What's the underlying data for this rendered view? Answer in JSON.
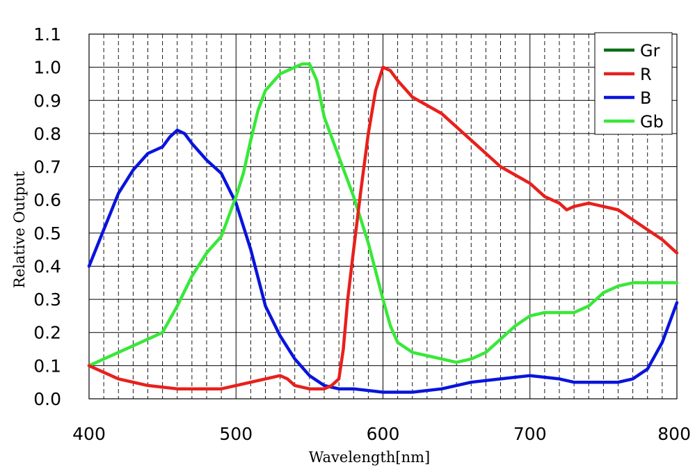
{
  "chart_data": {
    "type": "line",
    "xlabel": "Wavelength[nm]",
    "ylabel": "Relative Output",
    "xlim": [
      400,
      800
    ],
    "ylim": [
      0.0,
      1.1
    ],
    "x_ticks": [
      400,
      500,
      600,
      700,
      800
    ],
    "x_tick_labels": [
      "400",
      "500",
      "600",
      "700",
      "800"
    ],
    "y_ticks": [
      0.0,
      0.1,
      0.2,
      0.3,
      0.4,
      0.5,
      0.6,
      0.7,
      0.8,
      0.9,
      1.0,
      1.1
    ],
    "y_tick_labels": [
      "0.0",
      "0.1",
      "0.2",
      "0.3",
      "0.4",
      "0.5",
      "0.6",
      "0.7",
      "0.8",
      "0.9",
      "1.0",
      "1.1"
    ],
    "minor_x_step": 10,
    "grid": true,
    "legend_position": "top-right",
    "series": [
      {
        "name": "Gr",
        "color": "#0a6e14",
        "x": [],
        "y": []
      },
      {
        "name": "R",
        "color": "#e8201c",
        "x": [
          400,
          410,
          420,
          440,
          460,
          470,
          490,
          500,
          510,
          520,
          530,
          535,
          540,
          550,
          560,
          565,
          570,
          573,
          576,
          580,
          585,
          590,
          595,
          600,
          605,
          610,
          620,
          640,
          660,
          680,
          700,
          710,
          720,
          725,
          730,
          740,
          750,
          760,
          770,
          780,
          790,
          800
        ],
        "y": [
          0.1,
          0.08,
          0.06,
          0.04,
          0.03,
          0.03,
          0.03,
          0.04,
          0.05,
          0.06,
          0.07,
          0.06,
          0.04,
          0.03,
          0.03,
          0.04,
          0.06,
          0.15,
          0.3,
          0.45,
          0.63,
          0.8,
          0.93,
          1.0,
          0.99,
          0.96,
          0.91,
          0.86,
          0.78,
          0.7,
          0.65,
          0.61,
          0.59,
          0.57,
          0.58,
          0.59,
          0.58,
          0.57,
          0.54,
          0.51,
          0.48,
          0.44
        ]
      },
      {
        "name": "B",
        "color": "#0a14dc",
        "x": [
          400,
          410,
          420,
          430,
          440,
          450,
          455,
          460,
          465,
          470,
          480,
          490,
          500,
          510,
          520,
          530,
          540,
          550,
          560,
          570,
          580,
          600,
          620,
          640,
          660,
          680,
          700,
          720,
          730,
          740,
          760,
          770,
          780,
          790,
          800
        ],
        "y": [
          0.4,
          0.51,
          0.62,
          0.69,
          0.74,
          0.76,
          0.79,
          0.81,
          0.8,
          0.77,
          0.72,
          0.68,
          0.59,
          0.45,
          0.28,
          0.19,
          0.12,
          0.07,
          0.04,
          0.03,
          0.03,
          0.02,
          0.02,
          0.03,
          0.05,
          0.06,
          0.07,
          0.06,
          0.05,
          0.05,
          0.05,
          0.06,
          0.09,
          0.17,
          0.29
        ]
      },
      {
        "name": "Gb",
        "color": "#38e838",
        "x": [
          400,
          410,
          420,
          430,
          440,
          450,
          460,
          470,
          480,
          490,
          500,
          505,
          510,
          515,
          520,
          530,
          540,
          545,
          550,
          555,
          560,
          570,
          580,
          590,
          600,
          605,
          610,
          620,
          640,
          650,
          660,
          670,
          680,
          690,
          700,
          710,
          720,
          730,
          740,
          750,
          760,
          770,
          780,
          790,
          800
        ],
        "y": [
          0.1,
          0.12,
          0.14,
          0.16,
          0.18,
          0.2,
          0.28,
          0.37,
          0.44,
          0.49,
          0.61,
          0.68,
          0.78,
          0.87,
          0.93,
          0.98,
          1.0,
          1.01,
          1.01,
          0.96,
          0.85,
          0.73,
          0.61,
          0.47,
          0.3,
          0.22,
          0.17,
          0.14,
          0.12,
          0.11,
          0.12,
          0.14,
          0.18,
          0.22,
          0.25,
          0.26,
          0.26,
          0.26,
          0.28,
          0.32,
          0.34,
          0.35,
          0.35,
          0.35,
          0.35
        ]
      }
    ]
  }
}
